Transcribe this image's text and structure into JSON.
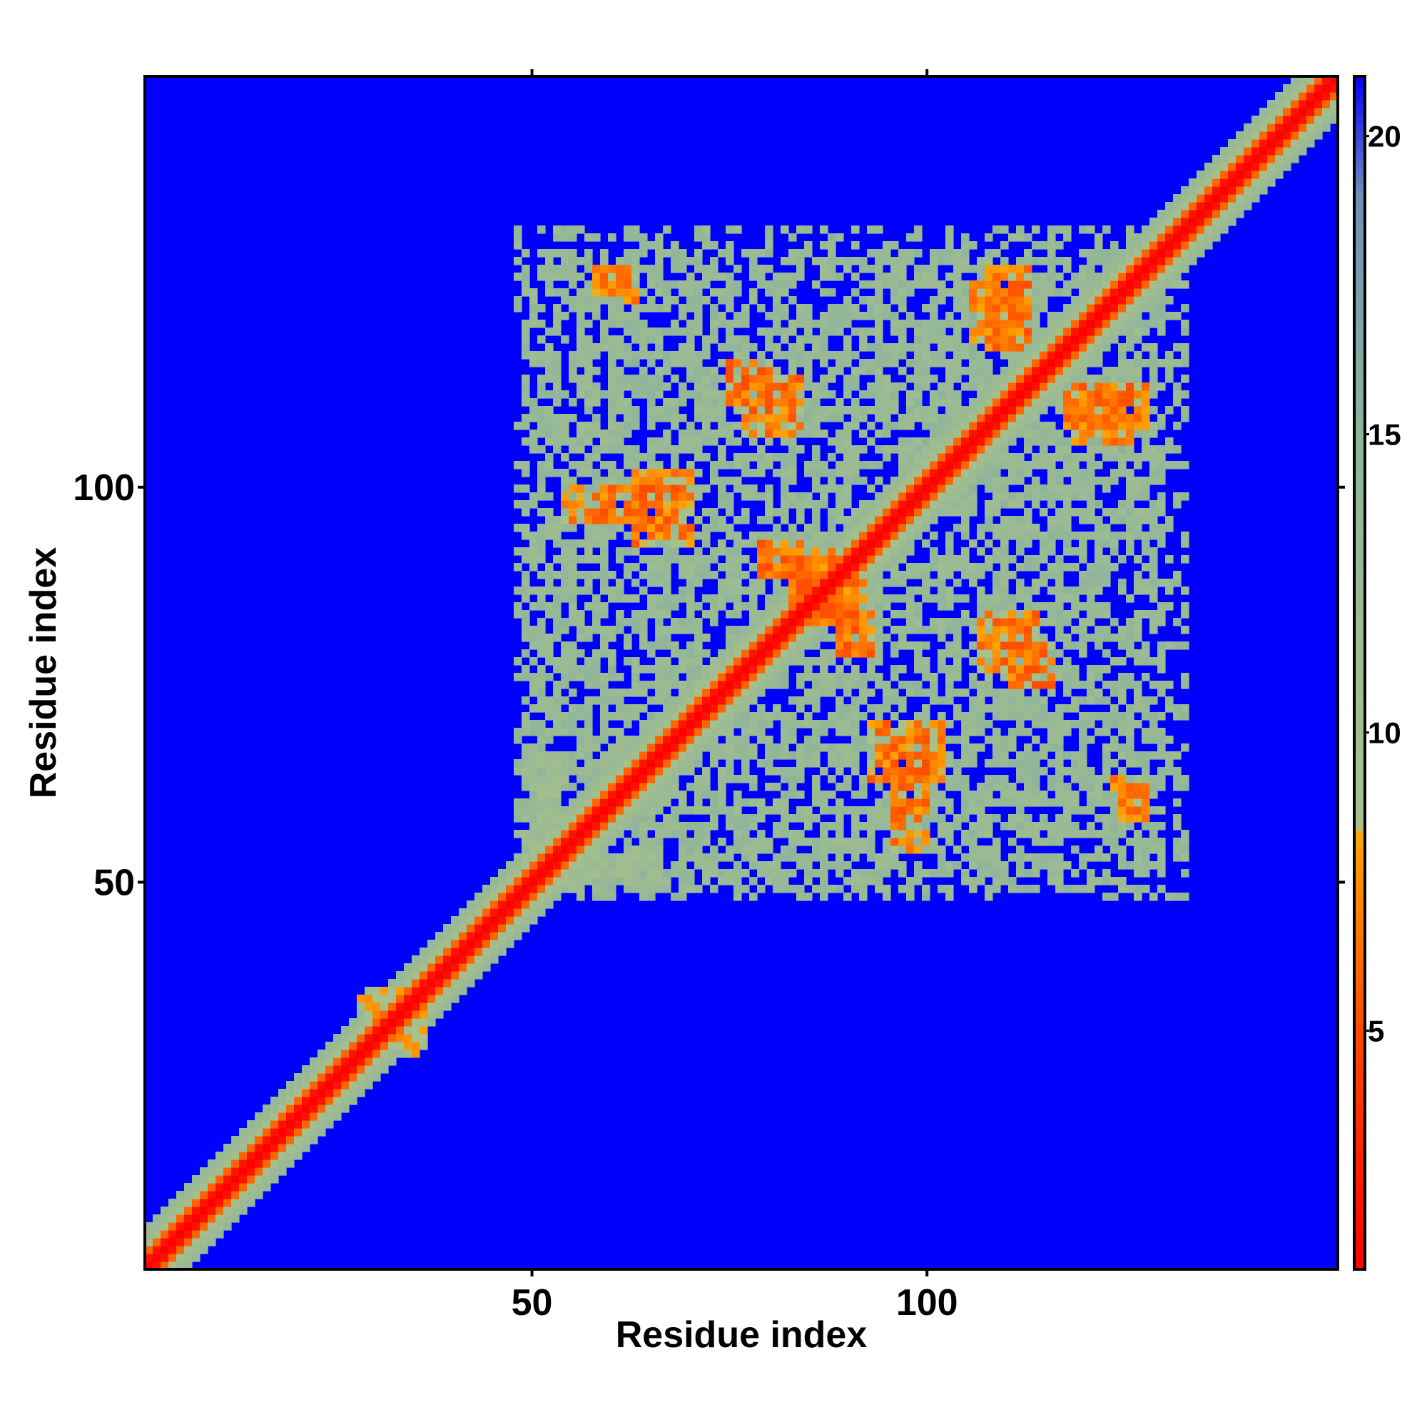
{
  "chart_data": {
    "type": "heatmap",
    "title": "",
    "xlabel": "Residue index",
    "ylabel": "Residue index",
    "n_residues": 152,
    "xlim": [
      1,
      152
    ],
    "ylim": [
      1,
      152
    ],
    "xticks": [
      50,
      100
    ],
    "yticks": [
      50,
      100
    ],
    "colorbar": {
      "range": [
        1,
        21
      ],
      "ticks": [
        5,
        10,
        15,
        20
      ],
      "stops": [
        {
          "value": 1,
          "color": "#ff0000"
        },
        {
          "value": 5,
          "color": "#ff4a00"
        },
        {
          "value": 8.3,
          "color": "#ffa500"
        },
        {
          "value": 8.4,
          "color": "#a9c28a"
        },
        {
          "value": 15,
          "color": "#8fb49b"
        },
        {
          "value": 19,
          "color": "#6f8fb8"
        },
        {
          "value": 21,
          "color": "#0000ff"
        }
      ]
    },
    "background_value": 21,
    "diagonal_band": {
      "red_width": 2,
      "orange_width": 3,
      "green_width": 6
    },
    "contact_regions": [
      {
        "x": [
          28,
          36
        ],
        "y": [
          29,
          36
        ],
        "value": 9
      },
      {
        "x": [
          50,
          66
        ],
        "y": [
          49,
          54
        ],
        "value": 12
      },
      {
        "x": [
          54,
          66
        ],
        "y": [
          96,
          100
        ],
        "value": 7
      },
      {
        "x": [
          58,
          62
        ],
        "y": [
          125,
          128
        ],
        "value": 7
      },
      {
        "x": [
          75,
          80
        ],
        "y": [
          111,
          116
        ],
        "value": 7
      },
      {
        "x": [
          79,
          84
        ],
        "y": [
          89,
          93
        ],
        "value": 7
      },
      {
        "x": [
          84,
          92
        ],
        "y": [
          83,
          88
        ],
        "value": 7
      },
      {
        "x": [
          93,
          102
        ],
        "y": [
          63,
          70
        ],
        "value": 7
      },
      {
        "x": [
          106,
          112
        ],
        "y": [
          119,
          126
        ],
        "value": 7
      },
      {
        "x": [
          107,
          114
        ],
        "y": [
          77,
          84
        ],
        "value": 7
      },
      {
        "x": [
          118,
          128
        ],
        "y": [
          108,
          113
        ],
        "value": 7
      },
      {
        "x": [
          124,
          128
        ],
        "y": [
          59,
          63
        ],
        "value": 7
      },
      {
        "x": [
          48,
          130
        ],
        "y": [
          49,
          133
        ],
        "value": 13
      }
    ]
  }
}
